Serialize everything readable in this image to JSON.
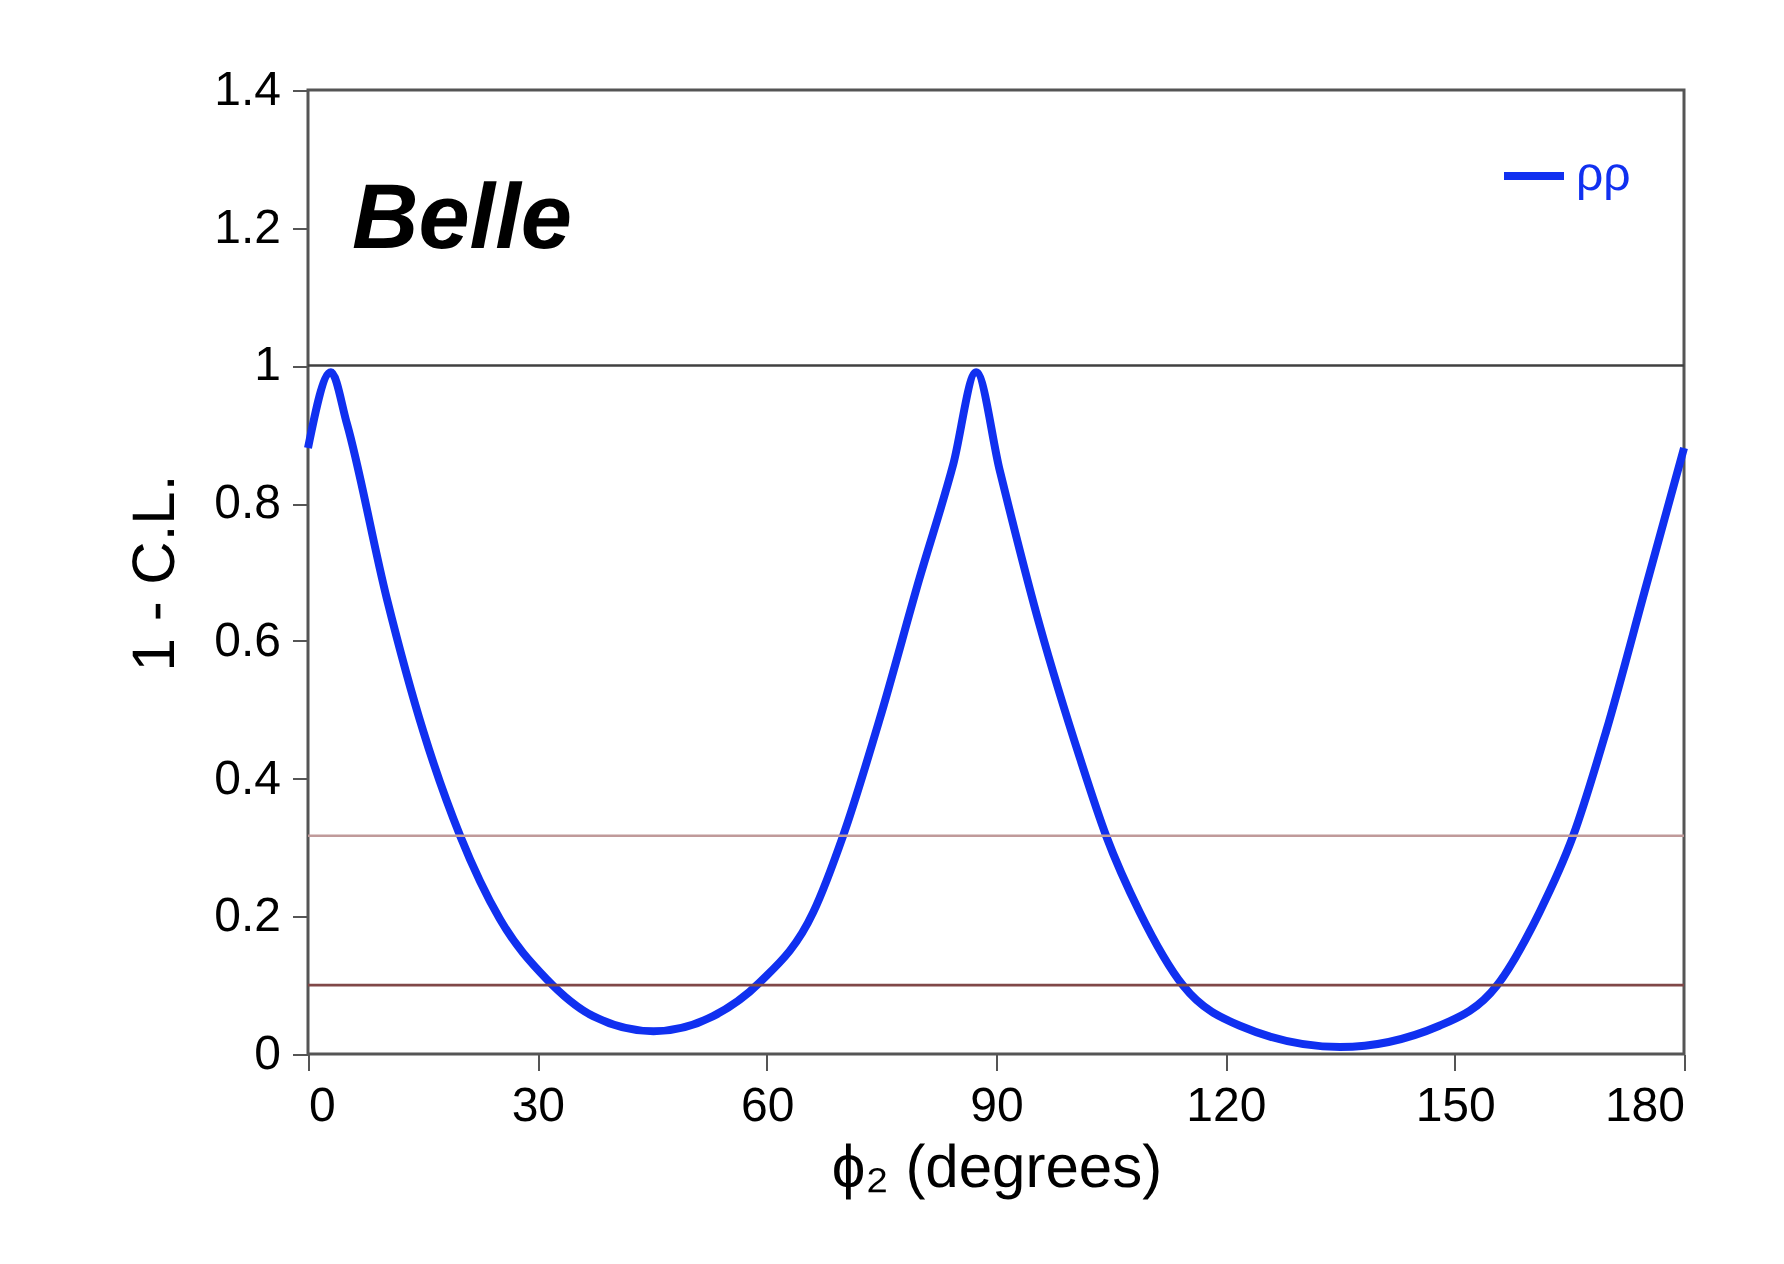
{
  "chart_data": {
    "type": "line",
    "xlabel": "ϕ₂ (degrees)",
    "ylabel": "1 - C.L.",
    "annotations": [
      "Belle"
    ],
    "xlim": [
      0,
      180
    ],
    "xticks": [
      0,
      30,
      60,
      90,
      120,
      150,
      180
    ],
    "ylim": [
      0,
      1.4
    ],
    "yticks": [
      0,
      0.2,
      0.4,
      0.6,
      0.8,
      1,
      1.2,
      1.4
    ],
    "grid": false,
    "legend": "top right",
    "line_style": "solid",
    "marker": "none",
    "ref_lines": [
      {
        "axis": "y",
        "value": 1,
        "color": "#404040"
      },
      {
        "axis": "y",
        "value": 0.317,
        "color": "#c09a9a"
      },
      {
        "axis": "y",
        "value": 0.1,
        "color": "#804848"
      }
    ],
    "series": [
      {
        "name": "ρρ",
        "color": "#1030f0",
        "x": [
          0,
          3,
          5.1,
          10.3,
          15.1,
          19.9,
          25.1,
          31.2,
          37.3,
          45.2,
          53,
          59.1,
          66.1,
          70,
          74.8,
          80,
          84.4,
          87.4,
          90.5,
          95.7,
          101,
          104.4,
          108.8,
          114.5,
          121.9,
          135,
          148,
          155.5,
          161.1,
          165.5,
          169.8,
          175.1,
          180
        ],
        "values": [
          0.88,
          0.99,
          0.915,
          0.662,
          0.468,
          0.317,
          0.196,
          0.109,
          0.055,
          0.033,
          0.055,
          0.104,
          0.206,
          0.317,
          0.487,
          0.691,
          0.856,
          0.99,
          0.847,
          0.623,
          0.429,
          0.317,
          0.206,
          0.099,
          0.041,
          0.01,
          0.041,
          0.099,
          0.206,
          0.317,
          0.468,
          0.682,
          0.88
        ]
      }
    ]
  }
}
